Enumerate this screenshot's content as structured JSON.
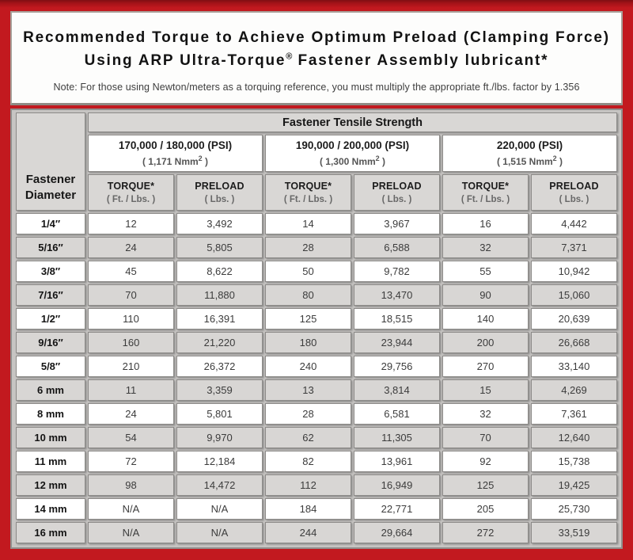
{
  "header": {
    "title_line1": "Recommended Torque to Achieve Optimum Preload (Clamping Force)",
    "title_line2_pre": "Using ARP Ultra-Torque",
    "title_line2_sup": "®",
    "title_line2_post": " Fastener Assembly lubricant*",
    "note": "Note: For those using Newton/meters as a torquing reference, you must multiply the appropriate ft./lbs. factor by 1.356"
  },
  "colors": {
    "frame_red": "#c2191f",
    "frame_dark_red": "#7f0e13",
    "header_cell_gray": "#d9d7d5",
    "alt_row_gray": "#d8d6d4",
    "cell_white": "#ffffff",
    "cell_border_gray": "#8c8a88"
  },
  "table": {
    "top_header": "Fastener Tensile Strength",
    "corner_line1": "Fastener",
    "corner_line2": "Diameter",
    "strength_groups": [
      {
        "psi": "170,000 / 180,000 (PSI)",
        "nmm_pre": "( 1,171 Nmm",
        "nmm_sup": "2",
        "nmm_post": " )"
      },
      {
        "psi": "190,000 / 200,000 (PSI)",
        "nmm_pre": "( 1,300 Nmm",
        "nmm_sup": "2",
        "nmm_post": " )"
      },
      {
        "psi": "220,000 (PSI)",
        "nmm_pre": "( 1,515 Nmm",
        "nmm_sup": "2",
        "nmm_post": " )"
      }
    ],
    "sub_headers": [
      {
        "label": "TORQUE*",
        "unit": "( Ft. / Lbs. )"
      },
      {
        "label": "PRELOAD",
        "unit": "( Lbs. )"
      },
      {
        "label": "TORQUE*",
        "unit": "( Ft. / Lbs. )"
      },
      {
        "label": "PRELOAD",
        "unit": "( Lbs. )"
      },
      {
        "label": "TORQUE*",
        "unit": "( Ft. / Lbs. )"
      },
      {
        "label": "PRELOAD",
        "unit": "( Lbs. )"
      }
    ],
    "rows": [
      {
        "diameter": "1/4″",
        "values": [
          "12",
          "3,492",
          "14",
          "3,967",
          "16",
          "4,442"
        ]
      },
      {
        "diameter": "5/16″",
        "values": [
          "24",
          "5,805",
          "28",
          "6,588",
          "32",
          "7,371"
        ]
      },
      {
        "diameter": "3/8″",
        "values": [
          "45",
          "8,622",
          "50",
          "9,782",
          "55",
          "10,942"
        ]
      },
      {
        "diameter": "7/16″",
        "values": [
          "70",
          "11,880",
          "80",
          "13,470",
          "90",
          "15,060"
        ]
      },
      {
        "diameter": "1/2″",
        "values": [
          "110",
          "16,391",
          "125",
          "18,515",
          "140",
          "20,639"
        ]
      },
      {
        "diameter": "9/16″",
        "values": [
          "160",
          "21,220",
          "180",
          "23,944",
          "200",
          "26,668"
        ]
      },
      {
        "diameter": "5/8″",
        "values": [
          "210",
          "26,372",
          "240",
          "29,756",
          "270",
          "33,140"
        ]
      },
      {
        "diameter": "6 mm",
        "values": [
          "11",
          "3,359",
          "13",
          "3,814",
          "15",
          "4,269"
        ]
      },
      {
        "diameter": "8 mm",
        "values": [
          "24",
          "5,801",
          "28",
          "6,581",
          "32",
          "7,361"
        ]
      },
      {
        "diameter": "10 mm",
        "values": [
          "54",
          "9,970",
          "62",
          "11,305",
          "70",
          "12,640"
        ]
      },
      {
        "diameter": "11 mm",
        "values": [
          "72",
          "12,184",
          "82",
          "13,961",
          "92",
          "15,738"
        ]
      },
      {
        "diameter": "12 mm",
        "values": [
          "98",
          "14,472",
          "112",
          "16,949",
          "125",
          "19,425"
        ]
      },
      {
        "diameter": "14 mm",
        "values": [
          "N/A",
          "N/A",
          "184",
          "22,771",
          "205",
          "25,730"
        ]
      },
      {
        "diameter": "16 mm",
        "values": [
          "N/A",
          "N/A",
          "244",
          "29,664",
          "272",
          "33,519"
        ]
      }
    ]
  }
}
